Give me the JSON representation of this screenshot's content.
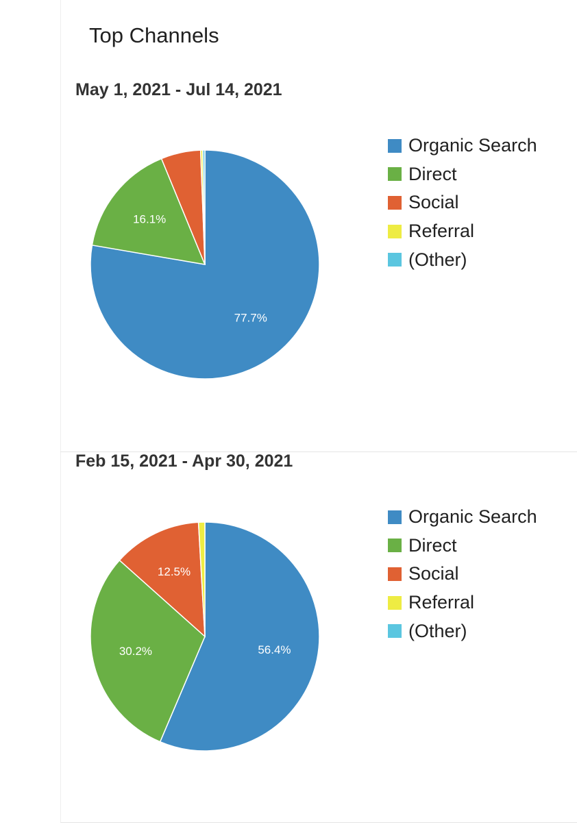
{
  "title": "Top Channels",
  "colors": {
    "Organic Search": "#3f8bc4",
    "Direct": "#6ab045",
    "Social": "#e06133",
    "Referral": "#eeec43",
    "(Other)": "#5bc6e0"
  },
  "legend_items": [
    "Organic Search",
    "Direct",
    "Social",
    "Referral",
    "(Other)"
  ],
  "chart_data": [
    {
      "type": "pie",
      "title": "May 1, 2021 - Jul 14, 2021",
      "categories": [
        "Organic Search",
        "Direct",
        "Social",
        "Referral",
        "(Other)"
      ],
      "values": [
        77.7,
        16.1,
        5.6,
        0.3,
        0.3
      ],
      "data_labels": [
        "77.7%",
        "16.1%",
        "",
        "",
        ""
      ],
      "legend_position": "right"
    },
    {
      "type": "pie",
      "title": "Feb 15, 2021 - Apr 30, 2021",
      "categories": [
        "Organic Search",
        "Direct",
        "Social",
        "Referral",
        "(Other)"
      ],
      "values": [
        56.4,
        30.2,
        12.5,
        0.9,
        0.0
      ],
      "data_labels": [
        "56.4%",
        "30.2%",
        "12.5%",
        "",
        ""
      ],
      "legend_position": "right"
    }
  ]
}
